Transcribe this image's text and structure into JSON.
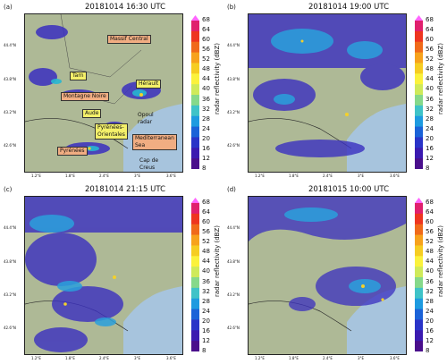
{
  "panels": [
    {
      "label": "(a)",
      "title": "20181014 16:30 UTC"
    },
    {
      "label": "(b)",
      "title": "20181014 19:00 UTC"
    },
    {
      "label": "(c)",
      "title": "20181014 21:15 UTC"
    },
    {
      "label": "(d)",
      "title": "20181015 10:00 UTC"
    }
  ],
  "colorbar": {
    "label": "radar reflectivity (dBZ)",
    "ticks": [
      "68",
      "64",
      "60",
      "56",
      "52",
      "48",
      "44",
      "40",
      "36",
      "32",
      "28",
      "24",
      "20",
      "16",
      "12",
      "8"
    ],
    "colors": [
      "#ff66ff",
      "#e0206e",
      "#ee3520",
      "#f06a1a",
      "#f7a21c",
      "#f6cd22",
      "#fbf23c",
      "#cfea5a",
      "#86d98a",
      "#3fc3c8",
      "#1e9be0",
      "#1b63d8",
      "#2a34c8",
      "#3b1ab0",
      "#4a0f8c"
    ]
  },
  "lat_labels": [
    "44.4°N",
    "43.8°N",
    "43.2°N",
    "42.6°N"
  ],
  "lon_labels": [
    "1.2°E",
    "1.8°E",
    "2.4°E",
    "3°E",
    "3.6°E"
  ],
  "annotations": {
    "massif": "Massif Central",
    "tarn": "Tarn",
    "herault": "Hérault",
    "montagne": "Montagne Noire",
    "aude": "Aude",
    "opoul": "Opoul\nradar",
    "pyr_or": "Pyrénées-\nOrientales",
    "med": "Mediterranean\nSea",
    "pyrenees": "Pyrénées",
    "cap": "Cap de\nCreus"
  }
}
